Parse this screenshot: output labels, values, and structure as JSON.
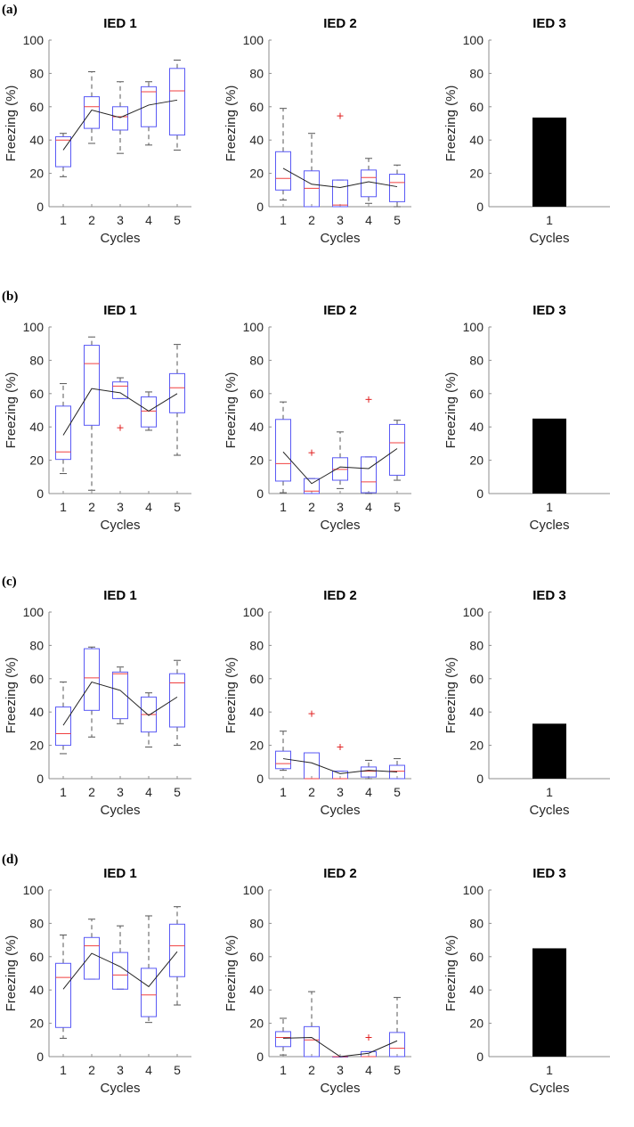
{
  "figure": {
    "panels": [
      "(a)",
      "(b)",
      "(c)",
      "(d)"
    ]
  },
  "colors": {
    "box": "#5a5af5",
    "median": "#f04040",
    "whisker": "#555555",
    "mean_line": "#222222",
    "outlier": "#e02020",
    "bar": "#000000",
    "axis": "#8c8c8c"
  },
  "chart_data": [
    {
      "panel": "(a)",
      "title": "IED 1",
      "type": "box",
      "xlabel": "Cycles",
      "ylabel": "Freezing (%)",
      "ylim": [
        0,
        100
      ],
      "yticks": [
        0,
        20,
        40,
        60,
        80,
        100
      ],
      "categories": [
        "1",
        "2",
        "3",
        "4",
        "5"
      ],
      "boxes": [
        [
          18,
          24,
          40,
          42,
          44
        ],
        [
          38,
          47,
          60,
          66,
          81
        ],
        [
          32,
          46,
          54,
          60,
          75
        ],
        [
          37,
          48,
          69,
          72,
          75
        ],
        [
          34,
          43,
          69.5,
          83,
          88
        ]
      ],
      "outliers": [
        [],
        [],
        [],
        [],
        []
      ],
      "means": [
        34,
        58,
        53.5,
        61,
        64
      ]
    },
    {
      "panel": "(a)",
      "title": "IED 2",
      "type": "box",
      "xlabel": "Cycles",
      "ylabel": "Freezing (%)",
      "ylim": [
        0,
        100
      ],
      "yticks": [
        0,
        20,
        40,
        60,
        80,
        100
      ],
      "categories": [
        "1",
        "2",
        "3",
        "4",
        "5"
      ],
      "boxes": [
        [
          4,
          10,
          17,
          33,
          59
        ],
        [
          0,
          0,
          11,
          21.5,
          44
        ],
        [
          0,
          0,
          1,
          16,
          16
        ],
        [
          2,
          6,
          17.5,
          22,
          29
        ],
        [
          0,
          3,
          14.5,
          19.5,
          25
        ]
      ],
      "outliers": [
        [],
        [],
        [
          54.5
        ],
        [],
        []
      ],
      "means": [
        23,
        13.5,
        11.5,
        15,
        12
      ]
    },
    {
      "panel": "(a)",
      "title": "IED 3",
      "type": "bar",
      "xlabel": "Cycles",
      "ylabel": "Freezing (%)",
      "ylim": [
        0,
        100
      ],
      "yticks": [
        0,
        20,
        40,
        60,
        80,
        100
      ],
      "categories": [
        "1"
      ],
      "values": [
        53.5
      ]
    },
    {
      "panel": "(b)",
      "title": "IED 1",
      "type": "box",
      "xlabel": "Cycles",
      "ylabel": "Freezing (%)",
      "ylim": [
        0,
        100
      ],
      "yticks": [
        0,
        20,
        40,
        60,
        80,
        100
      ],
      "categories": [
        "1",
        "2",
        "3",
        "4",
        "5"
      ],
      "boxes": [
        [
          12,
          20.5,
          25,
          52.5,
          66
        ],
        [
          2,
          41,
          78,
          89,
          94
        ],
        [
          57,
          57,
          64.5,
          67,
          69.5
        ],
        [
          38,
          40,
          49.5,
          58,
          61
        ],
        [
          23,
          48.5,
          63.5,
          72,
          89.5
        ]
      ],
      "outliers": [
        [],
        [],
        [
          39.5
        ],
        [],
        []
      ],
      "means": [
        35,
        63,
        60.5,
        49.5,
        60
      ]
    },
    {
      "panel": "(b)",
      "title": "IED 2",
      "type": "box",
      "xlabel": "Cycles",
      "ylabel": "Freezing (%)",
      "ylim": [
        0,
        100
      ],
      "yticks": [
        0,
        20,
        40,
        60,
        80,
        100
      ],
      "categories": [
        "1",
        "2",
        "3",
        "4",
        "5"
      ],
      "boxes": [
        [
          0.5,
          7.5,
          18,
          44.5,
          55
        ],
        [
          0,
          0,
          1.5,
          9,
          9
        ],
        [
          3,
          8,
          14.5,
          21.5,
          37
        ],
        [
          0,
          0.5,
          7,
          22,
          22
        ],
        [
          8,
          11,
          30.5,
          41.5,
          44
        ]
      ],
      "outliers": [
        [],
        [
          24.5
        ],
        [],
        [
          56.5
        ],
        []
      ],
      "means": [
        25,
        6,
        16,
        15,
        27
      ]
    },
    {
      "panel": "(b)",
      "title": "IED 3",
      "type": "bar",
      "xlabel": "Cycles",
      "ylabel": "Freezing (%)",
      "ylim": [
        0,
        100
      ],
      "yticks": [
        0,
        20,
        40,
        60,
        80,
        100
      ],
      "categories": [
        "1"
      ],
      "values": [
        45
      ]
    },
    {
      "panel": "(c)",
      "title": "IED 1",
      "type": "box",
      "xlabel": "Cycles",
      "ylabel": "Freezing (%)",
      "ylim": [
        0,
        100
      ],
      "yticks": [
        0,
        20,
        40,
        60,
        80,
        100
      ],
      "categories": [
        "1",
        "2",
        "3",
        "4",
        "5"
      ],
      "boxes": [
        [
          15,
          20,
          27,
          43,
          58
        ],
        [
          25,
          41,
          60.5,
          78,
          79
        ],
        [
          33,
          36,
          63,
          64,
          67
        ],
        [
          19,
          28,
          38.5,
          49,
          51.5
        ],
        [
          20,
          31,
          57.5,
          63,
          71
        ]
      ],
      "outliers": [
        [],
        [],
        [],
        [],
        []
      ],
      "means": [
        32,
        58,
        53,
        38,
        49
      ]
    },
    {
      "panel": "(c)",
      "title": "IED 2",
      "type": "box",
      "xlabel": "Cycles",
      "ylabel": "Freezing (%)",
      "ylim": [
        0,
        100
      ],
      "yticks": [
        0,
        20,
        40,
        60,
        80,
        100
      ],
      "categories": [
        "1",
        "2",
        "3",
        "4",
        "5"
      ],
      "boxes": [
        [
          5,
          6,
          9,
          16.5,
          28.5
        ],
        [
          0,
          0,
          0,
          15.5,
          15.5
        ],
        [
          0,
          0,
          0,
          4.5,
          4.5
        ],
        [
          0,
          1,
          4.5,
          7,
          11
        ],
        [
          0,
          0,
          4.5,
          8,
          12
        ]
      ],
      "outliers": [
        [],
        [
          39
        ],
        [
          19
        ],
        [],
        []
      ],
      "means": [
        12,
        9.5,
        3,
        5,
        4
      ]
    },
    {
      "panel": "(c)",
      "title": "IED 3",
      "type": "bar",
      "xlabel": "Cycles",
      "ylabel": "Freezing (%)",
      "ylim": [
        0,
        100
      ],
      "yticks": [
        0,
        20,
        40,
        60,
        80,
        100
      ],
      "categories": [
        "1"
      ],
      "values": [
        33
      ]
    },
    {
      "panel": "(d)",
      "title": "IED 1",
      "type": "box",
      "xlabel": "Cycles",
      "ylabel": "Freezing (%)",
      "ylim": [
        0,
        100
      ],
      "yticks": [
        0,
        20,
        40,
        60,
        80,
        100
      ],
      "categories": [
        "1",
        "2",
        "3",
        "4",
        "5"
      ],
      "boxes": [
        [
          11,
          17.5,
          47.5,
          56,
          73
        ],
        [
          46.5,
          46.5,
          66.5,
          71.5,
          82.5
        ],
        [
          40.5,
          40.5,
          49,
          62.5,
          78.5
        ],
        [
          20.5,
          24,
          37,
          53,
          84.5
        ],
        [
          31,
          48,
          66.5,
          79.5,
          90
        ]
      ],
      "outliers": [
        [],
        [],
        [],
        [],
        []
      ],
      "means": [
        40.5,
        62,
        54,
        42,
        63
      ]
    },
    {
      "panel": "(d)",
      "title": "IED 2",
      "type": "box",
      "xlabel": "Cycles",
      "ylabel": "Freezing (%)",
      "ylim": [
        0,
        100
      ],
      "yticks": [
        0,
        20,
        40,
        60,
        80,
        100
      ],
      "categories": [
        "1",
        "2",
        "3",
        "4",
        "5"
      ],
      "boxes": [
        [
          1,
          6,
          11.5,
          15,
          23
        ],
        [
          0,
          0,
          10,
          18,
          39
        ],
        [
          0,
          0,
          0,
          0,
          0
        ],
        [
          0,
          0,
          0,
          3,
          3
        ],
        [
          0,
          0,
          5,
          14.5,
          35.5
        ]
      ],
      "outliers": [
        [],
        [],
        [],
        [
          11.5
        ],
        []
      ],
      "means": [
        11,
        11.5,
        0,
        2,
        9.5
      ]
    },
    {
      "panel": "(d)",
      "title": "IED 3",
      "type": "bar",
      "xlabel": "Cycles",
      "ylabel": "Freezing (%)",
      "ylim": [
        0,
        100
      ],
      "yticks": [
        0,
        20,
        40,
        60,
        80,
        100
      ],
      "categories": [
        "1"
      ],
      "values": [
        65
      ]
    }
  ]
}
